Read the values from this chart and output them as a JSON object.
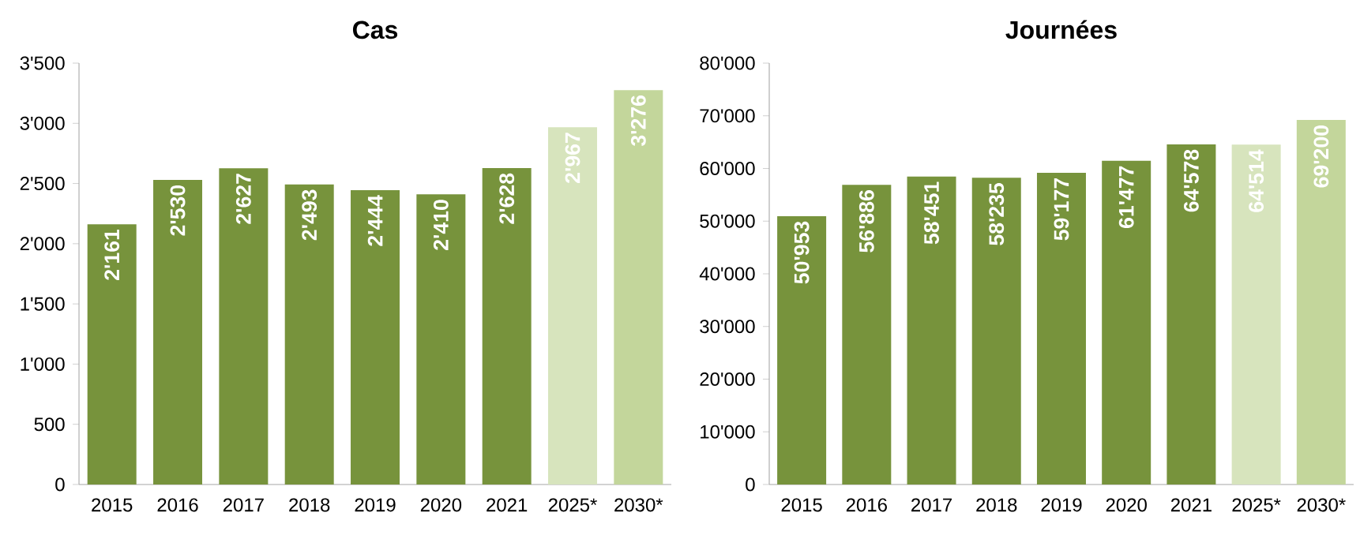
{
  "chart_data": [
    {
      "type": "bar",
      "title": "Cas",
      "categories": [
        "2015",
        "2016",
        "2017",
        "2018",
        "2019",
        "2020",
        "2021",
        "2025*",
        "2030*"
      ],
      "values": [
        2161,
        2530,
        2627,
        2493,
        2444,
        2410,
        2628,
        2967,
        3276
      ],
      "value_labels": [
        "2'161",
        "2'530",
        "2'627",
        "2'493",
        "2'444",
        "2'410",
        "2'628",
        "2'967",
        "3'276"
      ],
      "colors": [
        "#77933c",
        "#77933c",
        "#77933c",
        "#77933c",
        "#77933c",
        "#77933c",
        "#77933c",
        "#d7e4bd",
        "#c3d69b"
      ],
      "ylim": [
        0,
        3500
      ],
      "yticks": [
        0,
        500,
        {
          "value": 1000,
          "label": "1'000"
        },
        {
          "value": 1500,
          "label": "1'500"
        },
        {
          "value": 2000,
          "label": "2'000"
        },
        {
          "value": 2500,
          "label": "2'500"
        },
        {
          "value": 3000,
          "label": "3'000"
        },
        {
          "value": 3500,
          "label": "3'500"
        }
      ],
      "grid": false
    },
    {
      "type": "bar",
      "title": "Journées",
      "categories": [
        "2015",
        "2016",
        "2017",
        "2018",
        "2019",
        "2020",
        "2021",
        "2025*",
        "2030*"
      ],
      "values": [
        50953,
        56886,
        58451,
        58235,
        59177,
        61477,
        64578,
        64514,
        69200
      ],
      "value_labels": [
        "50'953",
        "56'886",
        "58'451",
        "58'235",
        "59'177",
        "61'477",
        "64'578",
        "64'514",
        "69'200"
      ],
      "colors": [
        "#77933c",
        "#77933c",
        "#77933c",
        "#77933c",
        "#77933c",
        "#77933c",
        "#77933c",
        "#d7e4bd",
        "#c3d69b"
      ],
      "ylim": [
        0,
        80000
      ],
      "yticks": [
        0,
        {
          "value": 10000,
          "label": "10'000"
        },
        {
          "value": 20000,
          "label": "20'000"
        },
        {
          "value": 30000,
          "label": "30'000"
        },
        {
          "value": 40000,
          "label": "40'000"
        },
        {
          "value": 50000,
          "label": "50'000"
        },
        {
          "value": 60000,
          "label": "60'000"
        },
        {
          "value": 70000,
          "label": "70'000"
        },
        {
          "value": 80000,
          "label": "80'000"
        }
      ],
      "grid": false
    }
  ]
}
